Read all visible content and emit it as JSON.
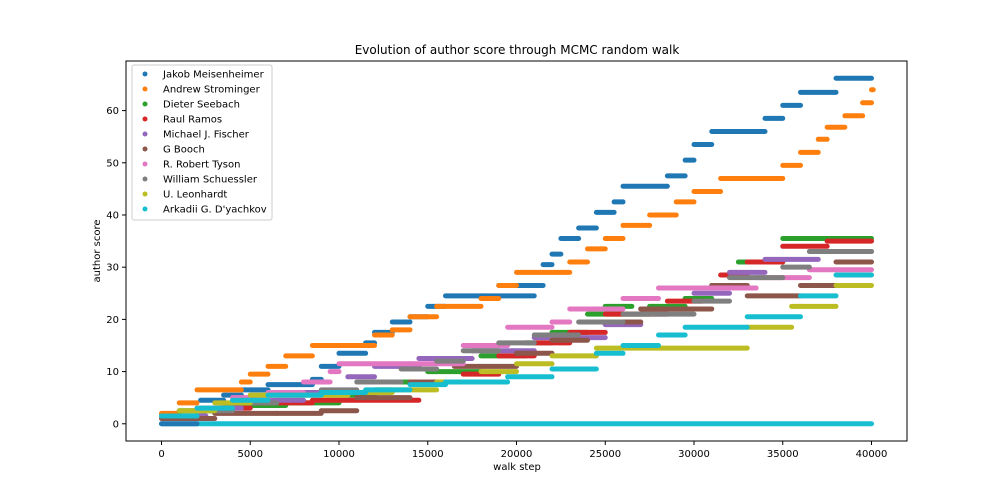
{
  "chart_data": {
    "type": "scatter",
    "title": "Evolution of author score through MCMC random walk",
    "xlabel": "walk step",
    "ylabel": "author score",
    "xlim": [
      -2000,
      42000
    ],
    "ylim": [
      -3.3,
      69.5
    ],
    "xticks": [
      0,
      5000,
      10000,
      15000,
      20000,
      25000,
      30000,
      35000,
      40000
    ],
    "yticks": [
      0,
      10,
      20,
      30,
      40,
      50,
      60
    ],
    "grid": false,
    "legend_position": "top-left",
    "series": [
      {
        "name": "Jakob Meisenheimer",
        "color": "#1f77b4",
        "segments": [
          [
            0,
            2000,
            0
          ],
          [
            2200,
            3500,
            4.5
          ],
          [
            3500,
            4500,
            5.5
          ],
          [
            4500,
            6000,
            6.5
          ],
          [
            6000,
            8500,
            7.5
          ],
          [
            8500,
            9000,
            8.5
          ],
          [
            9000,
            10000,
            11
          ],
          [
            10000,
            11500,
            13.5
          ],
          [
            11500,
            12000,
            15.5
          ],
          [
            12000,
            13000,
            17.5
          ],
          [
            13000,
            14000,
            19.5
          ],
          [
            14000,
            15000,
            20.5
          ],
          [
            15000,
            16000,
            22.5
          ],
          [
            16000,
            18000,
            24.5
          ],
          [
            18000,
            21000,
            24.5
          ],
          [
            19000,
            21500,
            26.5
          ],
          [
            21500,
            22000,
            30.5
          ],
          [
            22000,
            22500,
            32.5
          ],
          [
            22500,
            23500,
            35.5
          ],
          [
            23500,
            24500,
            37.5
          ],
          [
            24500,
            25500,
            40.5
          ],
          [
            25500,
            26000,
            42.5
          ],
          [
            26000,
            28500,
            45.5
          ],
          [
            28500,
            29500,
            47.5
          ],
          [
            29500,
            30000,
            50.5
          ],
          [
            30000,
            31000,
            53.5
          ],
          [
            31000,
            34000,
            56
          ],
          [
            34000,
            35000,
            58.5
          ],
          [
            35000,
            36000,
            61
          ],
          [
            36000,
            38000,
            63.5
          ],
          [
            38000,
            40000,
            66.2
          ]
        ]
      },
      {
        "name": "Andrew Strominger",
        "color": "#ff7f0e",
        "segments": [
          [
            0,
            1000,
            2
          ],
          [
            1000,
            2000,
            4
          ],
          [
            2000,
            4500,
            6.5
          ],
          [
            4500,
            5000,
            8
          ],
          [
            5000,
            6000,
            9.5
          ],
          [
            6000,
            7000,
            11
          ],
          [
            7000,
            8500,
            13
          ],
          [
            8500,
            10000,
            15
          ],
          [
            10000,
            12000,
            15
          ],
          [
            12000,
            13000,
            17
          ],
          [
            13000,
            14000,
            18
          ],
          [
            14000,
            15500,
            20.5
          ],
          [
            15500,
            18000,
            22.5
          ],
          [
            18000,
            19000,
            24
          ],
          [
            19000,
            20000,
            26.5
          ],
          [
            20000,
            23000,
            29
          ],
          [
            23000,
            24000,
            31
          ],
          [
            24000,
            25000,
            33.5
          ],
          [
            25000,
            26000,
            35.5
          ],
          [
            26000,
            27500,
            38
          ],
          [
            27500,
            29000,
            40
          ],
          [
            29000,
            30000,
            42.5
          ],
          [
            30000,
            31500,
            44.5
          ],
          [
            31500,
            35000,
            47
          ],
          [
            35000,
            36000,
            49.5
          ],
          [
            36000,
            37000,
            52
          ],
          [
            37000,
            37500,
            54.5
          ],
          [
            37500,
            38500,
            56.8
          ],
          [
            38500,
            39500,
            59
          ],
          [
            39500,
            40000,
            61.5
          ],
          [
            40000,
            40100,
            64
          ]
        ]
      },
      {
        "name": "Dieter Seebach",
        "color": "#2ca02c",
        "segments": [
          [
            0,
            1000,
            1.5
          ],
          [
            1000,
            3500,
            2.5
          ],
          [
            3500,
            7000,
            3.5
          ],
          [
            7000,
            10000,
            4
          ],
          [
            10000,
            12000,
            5.5
          ],
          [
            12000,
            13000,
            6.5
          ],
          [
            13000,
            15000,
            8
          ],
          [
            15000,
            18000,
            10
          ],
          [
            18000,
            20500,
            13
          ],
          [
            20500,
            22000,
            15.5
          ],
          [
            22000,
            24000,
            17.5
          ],
          [
            24000,
            27500,
            21
          ],
          [
            25000,
            26500,
            22.5
          ],
          [
            27500,
            29500,
            22.5
          ],
          [
            29500,
            31000,
            24
          ],
          [
            31000,
            32500,
            26.5
          ],
          [
            32500,
            35000,
            31
          ],
          [
            35000,
            40000,
            35.5
          ]
        ]
      },
      {
        "name": "Raul Ramos",
        "color": "#d62728",
        "segments": [
          [
            0,
            2000,
            1.5
          ],
          [
            2000,
            5000,
            3
          ],
          [
            5000,
            8500,
            4
          ],
          [
            8500,
            11000,
            4.5
          ],
          [
            11000,
            14500,
            4.5
          ],
          [
            14500,
            17000,
            8
          ],
          [
            17000,
            19000,
            9.5
          ],
          [
            19000,
            21000,
            13
          ],
          [
            21000,
            23000,
            15.5
          ],
          [
            23000,
            25000,
            17.5
          ],
          [
            25000,
            28500,
            21
          ],
          [
            28500,
            30500,
            23.5
          ],
          [
            30500,
            31500,
            26
          ],
          [
            31500,
            33000,
            28.5
          ],
          [
            33000,
            35000,
            31
          ],
          [
            35000,
            37500,
            34
          ],
          [
            37500,
            40000,
            35
          ]
        ]
      },
      {
        "name": "Michael J. Fischer",
        "color": "#9467bd",
        "segments": [
          [
            0,
            2500,
            1.5
          ],
          [
            2500,
            4500,
            3
          ],
          [
            4500,
            8000,
            4.5
          ],
          [
            8000,
            10500,
            6
          ],
          [
            10500,
            12000,
            9
          ],
          [
            12000,
            14500,
            11
          ],
          [
            14500,
            17500,
            12.5
          ],
          [
            17500,
            21000,
            14
          ],
          [
            21000,
            25000,
            16.5
          ],
          [
            25000,
            27000,
            19
          ],
          [
            27000,
            30000,
            22
          ],
          [
            30000,
            32000,
            25
          ],
          [
            32000,
            34000,
            29
          ],
          [
            34000,
            37000,
            31.5
          ],
          [
            37000,
            40000,
            33
          ]
        ]
      },
      {
        "name": "G Booch",
        "color": "#8c564b",
        "segments": [
          [
            0,
            3000,
            1
          ],
          [
            3000,
            6500,
            2
          ],
          [
            6500,
            9000,
            2
          ],
          [
            9000,
            11000,
            2.5
          ],
          [
            11000,
            14000,
            5
          ],
          [
            14000,
            16500,
            8
          ],
          [
            16500,
            20000,
            11
          ],
          [
            20000,
            22000,
            13.5
          ],
          [
            22000,
            24000,
            16
          ],
          [
            24000,
            27000,
            19.5
          ],
          [
            27000,
            31000,
            22
          ],
          [
            31000,
            33000,
            26.5
          ],
          [
            33000,
            36000,
            24.5
          ],
          [
            36000,
            38000,
            26.5
          ],
          [
            38000,
            40000,
            31
          ]
        ]
      },
      {
        "name": "R. Robert Tyson",
        "color": "#e377c2",
        "segments": [
          [
            0,
            2000,
            1.5
          ],
          [
            2000,
            4000,
            3
          ],
          [
            4000,
            6000,
            5
          ],
          [
            6000,
            8000,
            6
          ],
          [
            8000,
            9500,
            8
          ],
          [
            9500,
            10000,
            10
          ],
          [
            10000,
            14000,
            11.5
          ],
          [
            14000,
            17000,
            11.5
          ],
          [
            17000,
            19500,
            15
          ],
          [
            19500,
            22000,
            18.5
          ],
          [
            22000,
            23000,
            19.5
          ],
          [
            23000,
            26000,
            22
          ],
          [
            26000,
            28000,
            24
          ],
          [
            28000,
            33500,
            26
          ],
          [
            33500,
            36500,
            28
          ],
          [
            36500,
            40000,
            29.5
          ]
        ]
      },
      {
        "name": "William Schuessler",
        "color": "#7f7f7f",
        "segments": [
          [
            0,
            2000,
            1.5
          ],
          [
            2000,
            4000,
            2.5
          ],
          [
            4000,
            6500,
            4
          ],
          [
            6500,
            9000,
            5.5
          ],
          [
            9000,
            11000,
            6.5
          ],
          [
            11000,
            13500,
            8
          ],
          [
            13500,
            15500,
            10.5
          ],
          [
            15500,
            17000,
            12
          ],
          [
            17000,
            19000,
            14
          ],
          [
            19000,
            21000,
            15.5
          ],
          [
            21000,
            23500,
            17
          ],
          [
            23500,
            26000,
            19.5
          ],
          [
            26000,
            30000,
            21
          ],
          [
            30000,
            32000,
            23.5
          ],
          [
            32000,
            35000,
            28
          ],
          [
            35000,
            36500,
            30
          ],
          [
            36500,
            40000,
            33
          ]
        ]
      },
      {
        "name": "U. Leonhardt",
        "color": "#bcbd22",
        "segments": [
          [
            0,
            1000,
            1.5
          ],
          [
            1000,
            3000,
            2.5
          ],
          [
            3000,
            5000,
            4
          ],
          [
            5000,
            8000,
            5.5
          ],
          [
            8000,
            10500,
            5.5
          ],
          [
            10500,
            13000,
            6
          ],
          [
            13000,
            15500,
            6.5
          ],
          [
            15500,
            18000,
            8
          ],
          [
            18000,
            20000,
            10
          ],
          [
            20000,
            22000,
            11.5
          ],
          [
            22000,
            24500,
            13
          ],
          [
            24500,
            27500,
            14.5
          ],
          [
            27500,
            33000,
            14.5
          ],
          [
            33000,
            35500,
            18.5
          ],
          [
            35500,
            38000,
            22.5
          ],
          [
            38000,
            40000,
            26.5
          ]
        ]
      },
      {
        "name": "Arkadii G. D'yachkov",
        "color": "#17becf",
        "segments": [
          [
            0,
            2000,
            1.5
          ],
          [
            2000,
            4000,
            3
          ],
          [
            4000,
            6000,
            4.5
          ],
          [
            6000,
            9000,
            5.5
          ],
          [
            9000,
            11500,
            6
          ],
          [
            11500,
            14000,
            6.5
          ],
          [
            14000,
            16000,
            7.5
          ],
          [
            16000,
            19500,
            8
          ],
          [
            19500,
            22000,
            9
          ],
          [
            22000,
            24500,
            10.5
          ],
          [
            24500,
            26000,
            13.5
          ],
          [
            26000,
            28000,
            15
          ],
          [
            28000,
            29500,
            17
          ],
          [
            29500,
            33000,
            18.5
          ],
          [
            33000,
            36000,
            20.5
          ],
          [
            36000,
            38000,
            24.5
          ],
          [
            38000,
            40000,
            28.5
          ]
        ]
      }
    ],
    "zero_line_color": "#17becf"
  }
}
